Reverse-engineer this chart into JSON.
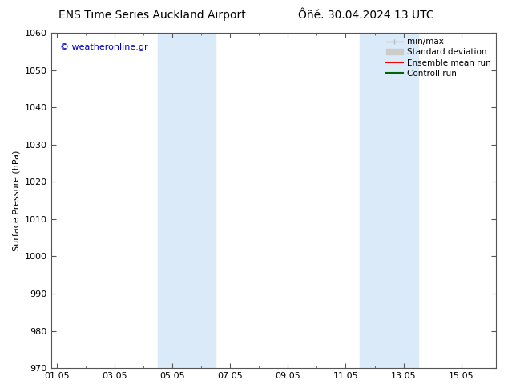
{
  "title_left": "ENS Time Series Auckland Airport",
  "title_right": "Ôñé. 30.04.2024 13 UTC",
  "ylabel": "Surface Pressure (hPa)",
  "ylim": [
    970,
    1060
  ],
  "yticks": [
    970,
    980,
    990,
    1000,
    1010,
    1020,
    1030,
    1040,
    1050,
    1060
  ],
  "xtick_labels": [
    "01.05",
    "03.05",
    "05.05",
    "07.05",
    "09.05",
    "11.05",
    "13.05",
    "15.05"
  ],
  "xtick_positions": [
    0,
    2,
    4,
    6,
    8,
    10,
    12,
    14
  ],
  "xmin": -0.2,
  "xmax": 15.2,
  "shaded_bands": [
    {
      "xmin": 3.5,
      "xmax": 5.5
    },
    {
      "xmin": 10.5,
      "xmax": 12.5
    }
  ],
  "shade_color": "#daeaf8",
  "watermark_text": "© weatheronline.gr",
  "watermark_color": "#0000cc",
  "legend_items": [
    {
      "label": "min/max",
      "color": "#bbbbbb",
      "lw": 1.0
    },
    {
      "label": "Standard deviation",
      "color": "#cccccc",
      "lw": 6
    },
    {
      "label": "Ensemble mean run",
      "color": "#ff0000",
      "lw": 1.5
    },
    {
      "label": "Controll run",
      "color": "#006600",
      "lw": 1.5
    }
  ],
  "bg_color": "#ffffff",
  "title_fontsize": 10,
  "tick_fontsize": 8,
  "ylabel_fontsize": 8,
  "legend_fontsize": 7.5
}
